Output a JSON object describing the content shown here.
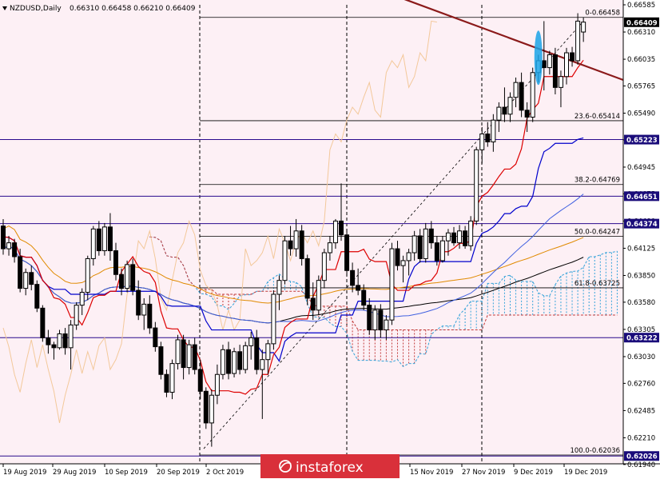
{
  "header": {
    "symbol": "NZDUSD,Daily",
    "ohlc": "0.66310 0.66458 0.66210 0.66409"
  },
  "watermark": {
    "brand": "instaforex"
  },
  "colors": {
    "background": "#fdf0f5",
    "bull": "#ffffff",
    "bear": "#000000",
    "fib_line": "#000000",
    "level_line": "#2a0a8c",
    "tag_level": "#1a0c7a",
    "tag_current": "#000000",
    "trend_line": "#8b1a1a",
    "kijun": "#0000cc",
    "tenkan": "#dd0000",
    "sma_fast": "#4060e0",
    "sma_slow": "#000000",
    "sma_200": "#e08a00",
    "cloud_bull": "#36a3d9",
    "cloud_bear": "#c23a3a",
    "chikou": "#f3c89a",
    "highlight": "#1aa3e6",
    "watermark_bg": "#d9303a"
  },
  "chart_data": {
    "type": "candlestick",
    "instrument": "NZDUSD",
    "timeframe": "Daily",
    "ylim": [
      0.61947,
      0.66585
    ],
    "y_ticks": [
      "0.66585",
      "0.66310",
      "0.66035",
      "0.65765",
      "0.65490",
      "0.65220",
      "0.64945",
      "0.64675",
      "0.64400",
      "0.64125",
      "0.63850",
      "0.63580",
      "0.63305",
      "0.63030",
      "0.62760",
      "0.62485",
      "0.62210",
      "0.61940"
    ],
    "x_labels": [
      "19 Aug 2019",
      "29 Aug 2019",
      "10 Sep 2019",
      "20 Sep 2019",
      "2 Oct 2019",
      "15 Nov 2019",
      "27 Nov 2019",
      "9 Dec 2019",
      "19 Dec 2019"
    ],
    "price_tags": [
      {
        "label": "0.66409",
        "value": 0.66409,
        "kind": "current"
      },
      {
        "label": "0.65223",
        "value": 0.65223,
        "kind": "level"
      },
      {
        "label": "0.64651",
        "value": 0.64651,
        "kind": "level"
      },
      {
        "label": "0.64374",
        "value": 0.64374,
        "kind": "level"
      },
      {
        "label": "0.63222",
        "value": 0.63222,
        "kind": "level"
      },
      {
        "label": "0.62026",
        "value": 0.62026,
        "kind": "level"
      }
    ],
    "fibonacci": [
      {
        "label": "0-0.66458",
        "value": 0.66458
      },
      {
        "label": "23.6-0.65414",
        "value": 0.65414
      },
      {
        "label": "38.2-0.64769",
        "value": 0.64769
      },
      {
        "label": "50.0-0.64247",
        "value": 0.64247
      },
      {
        "label": "61.8-0.63725",
        "value": 0.63725
      },
      {
        "label": "100.0-0.62036",
        "value": 0.62036
      }
    ],
    "candles": [
      [
        0.6435,
        0.6442,
        0.6406,
        0.6412
      ],
      [
        0.6412,
        0.6425,
        0.6405,
        0.6418
      ],
      [
        0.6418,
        0.6422,
        0.6398,
        0.6404
      ],
      [
        0.6404,
        0.6412,
        0.6368,
        0.6372
      ],
      [
        0.6372,
        0.6392,
        0.6365,
        0.6388
      ],
      [
        0.6388,
        0.6395,
        0.637,
        0.6376
      ],
      [
        0.6376,
        0.638,
        0.6348,
        0.6352
      ],
      [
        0.6352,
        0.6355,
        0.6318,
        0.6322
      ],
      [
        0.6322,
        0.633,
        0.6306,
        0.6315
      ],
      [
        0.6315,
        0.6318,
        0.63,
        0.6312
      ],
      [
        0.6312,
        0.633,
        0.631,
        0.6326
      ],
      [
        0.6326,
        0.6332,
        0.6305,
        0.6312
      ],
      [
        0.6312,
        0.634,
        0.629,
        0.6335
      ],
      [
        0.6335,
        0.6358,
        0.633,
        0.6355
      ],
      [
        0.6355,
        0.6372,
        0.6345,
        0.6368
      ],
      [
        0.6368,
        0.6405,
        0.636,
        0.6402
      ],
      [
        0.6402,
        0.6435,
        0.6395,
        0.6432
      ],
      [
        0.6432,
        0.644,
        0.6405,
        0.641
      ],
      [
        0.641,
        0.6438,
        0.6405,
        0.6434
      ],
      [
        0.6434,
        0.6448,
        0.64,
        0.641
      ],
      [
        0.641,
        0.6418,
        0.638,
        0.6386
      ],
      [
        0.6386,
        0.6392,
        0.6365,
        0.6372
      ],
      [
        0.6372,
        0.64,
        0.6368,
        0.6396
      ],
      [
        0.6396,
        0.6402,
        0.6365,
        0.637
      ],
      [
        0.637,
        0.638,
        0.634,
        0.6345
      ],
      [
        0.6345,
        0.6362,
        0.633,
        0.6356
      ],
      [
        0.6356,
        0.6365,
        0.6326,
        0.6332
      ],
      [
        0.6332,
        0.6338,
        0.6308,
        0.6313
      ],
      [
        0.6313,
        0.6318,
        0.628,
        0.6285
      ],
      [
        0.6285,
        0.629,
        0.6262,
        0.6267
      ],
      [
        0.6267,
        0.63,
        0.626,
        0.6296
      ],
      [
        0.6296,
        0.6325,
        0.629,
        0.632
      ],
      [
        0.632,
        0.6325,
        0.628,
        0.6292
      ],
      [
        0.6292,
        0.632,
        0.6285,
        0.6315
      ],
      [
        0.6315,
        0.6322,
        0.6285,
        0.629
      ],
      [
        0.629,
        0.63,
        0.626,
        0.6268
      ],
      [
        0.6268,
        0.6272,
        0.623,
        0.6236
      ],
      [
        0.6236,
        0.627,
        0.6212,
        0.6264
      ],
      [
        0.6264,
        0.6295,
        0.6255,
        0.6285
      ],
      [
        0.6285,
        0.6315,
        0.628,
        0.631
      ],
      [
        0.631,
        0.6318,
        0.628,
        0.6286
      ],
      [
        0.6286,
        0.6312,
        0.6282,
        0.6308
      ],
      [
        0.6308,
        0.6315,
        0.6285,
        0.629
      ],
      [
        0.629,
        0.6318,
        0.6286,
        0.6314
      ],
      [
        0.6314,
        0.6328,
        0.63,
        0.6322
      ],
      [
        0.6322,
        0.633,
        0.6285,
        0.629
      ],
      [
        0.629,
        0.631,
        0.624,
        0.63
      ],
      [
        0.63,
        0.632,
        0.6285,
        0.6316
      ],
      [
        0.6316,
        0.637,
        0.631,
        0.6366
      ],
      [
        0.6366,
        0.6385,
        0.635,
        0.638
      ],
      [
        0.638,
        0.6425,
        0.6376,
        0.642
      ],
      [
        0.642,
        0.6435,
        0.6405,
        0.6412
      ],
      [
        0.6412,
        0.6442,
        0.6404,
        0.643
      ],
      [
        0.643,
        0.6436,
        0.6395,
        0.6402
      ],
      [
        0.6402,
        0.6406,
        0.6355,
        0.6362
      ],
      [
        0.6362,
        0.6378,
        0.634,
        0.635
      ],
      [
        0.635,
        0.6385,
        0.6345,
        0.638
      ],
      [
        0.638,
        0.6412,
        0.6372,
        0.6408
      ],
      [
        0.6408,
        0.6425,
        0.64,
        0.6418
      ],
      [
        0.6418,
        0.6442,
        0.6412,
        0.644
      ],
      [
        0.644,
        0.6478,
        0.642,
        0.6426
      ],
      [
        0.6426,
        0.6432,
        0.6385,
        0.639
      ],
      [
        0.639,
        0.6398,
        0.6368,
        0.6375
      ],
      [
        0.6375,
        0.6392,
        0.6365,
        0.637
      ],
      [
        0.637,
        0.6376,
        0.635,
        0.6355
      ],
      [
        0.6355,
        0.6362,
        0.6325,
        0.633
      ],
      [
        0.633,
        0.6355,
        0.632,
        0.635
      ],
      [
        0.635,
        0.6356,
        0.6322,
        0.633
      ],
      [
        0.633,
        0.6345,
        0.632,
        0.634
      ],
      [
        0.634,
        0.6418,
        0.6335,
        0.6412
      ],
      [
        0.6412,
        0.642,
        0.639,
        0.6395
      ],
      [
        0.6395,
        0.6405,
        0.6378,
        0.64
      ],
      [
        0.64,
        0.6412,
        0.6385,
        0.6408
      ],
      [
        0.6408,
        0.643,
        0.64,
        0.6425
      ],
      [
        0.6425,
        0.6432,
        0.6398,
        0.6402
      ],
      [
        0.6402,
        0.6438,
        0.6398,
        0.6432
      ],
      [
        0.6432,
        0.644,
        0.6412,
        0.6418
      ],
      [
        0.6418,
        0.6425,
        0.6395,
        0.64
      ],
      [
        0.64,
        0.6425,
        0.6398,
        0.642
      ],
      [
        0.642,
        0.6432,
        0.6405,
        0.6428
      ],
      [
        0.6428,
        0.6434,
        0.6415,
        0.6418
      ],
      [
        0.6418,
        0.6436,
        0.6412,
        0.643
      ],
      [
        0.643,
        0.6435,
        0.6412,
        0.6415
      ],
      [
        0.6415,
        0.6445,
        0.641,
        0.644
      ],
      [
        0.644,
        0.6515,
        0.6436,
        0.6512
      ],
      [
        0.6512,
        0.6535,
        0.6498,
        0.6528
      ],
      [
        0.6528,
        0.654,
        0.6515,
        0.652
      ],
      [
        0.652,
        0.6548,
        0.651,
        0.6542
      ],
      [
        0.6542,
        0.656,
        0.653,
        0.6555
      ],
      [
        0.6555,
        0.6575,
        0.654,
        0.6548
      ],
      [
        0.6548,
        0.657,
        0.654,
        0.6565
      ],
      [
        0.6565,
        0.6585,
        0.6555,
        0.658
      ],
      [
        0.658,
        0.659,
        0.6545,
        0.6552
      ],
      [
        0.6552,
        0.656,
        0.653,
        0.6545
      ],
      [
        0.6545,
        0.6595,
        0.654,
        0.659
      ],
      [
        0.659,
        0.6608,
        0.658,
        0.6602
      ],
      [
        0.6602,
        0.6642,
        0.6572,
        0.6595
      ],
      [
        0.6595,
        0.6612,
        0.6588,
        0.6608
      ],
      [
        0.6608,
        0.6615,
        0.6568,
        0.6575
      ],
      [
        0.6575,
        0.6592,
        0.6555,
        0.6586
      ],
      [
        0.6586,
        0.6615,
        0.6578,
        0.661
      ],
      [
        0.661,
        0.6616,
        0.6596,
        0.6602
      ],
      [
        0.6602,
        0.665,
        0.6598,
        0.6642
      ],
      [
        0.6631,
        0.6646,
        0.6621,
        0.6641
      ]
    ],
    "trend_line": [
      [
        30,
        0.6682
      ],
      [
        103,
        0.6589
      ]
    ],
    "indicators": [
      "Ichimoku Kinko Hyo",
      "Moving Averages",
      "Fibonacci retracement"
    ]
  }
}
